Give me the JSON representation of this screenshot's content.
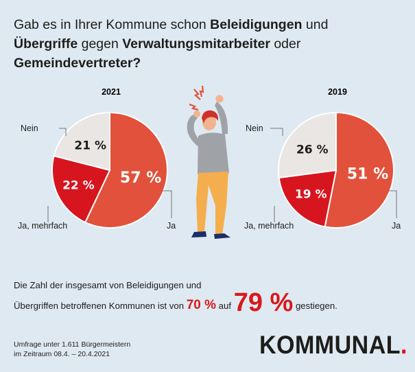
{
  "title": {
    "part1": "Gab es in Ihrer Kommune schon ",
    "bold1": "Beleidigungen",
    "part2": " und ",
    "bold2": "Übergriffe",
    "part3": " gegen ",
    "bold3": "Verwaltungsmitarbeiter",
    "part4": " oder ",
    "bold4": "Gemeindevertreter?"
  },
  "chart_data": [
    {
      "type": "pie",
      "title": "2021",
      "categories": [
        "Ja",
        "Ja, mehrfach",
        "Nein"
      ],
      "values": [
        57,
        22,
        21
      ],
      "labels": [
        "57 %",
        "22 %",
        "21 %"
      ],
      "colors": [
        "#e2513b",
        "#d7151f",
        "#e9e6e3"
      ]
    },
    {
      "type": "pie",
      "title": "2019",
      "categories": [
        "Ja",
        "Ja, mehrfach",
        "Nein"
      ],
      "values": [
        51,
        19,
        26
      ],
      "labels": [
        "51 %",
        "19 %",
        "26 %"
      ],
      "colors": [
        "#e2513b",
        "#d7151f",
        "#e9e6e3"
      ]
    }
  ],
  "summary": {
    "line1": "Die Zahl der insgesamt von Beleidigungen und",
    "line2a": "Übergriffen betroffenen Kommunen ist von ",
    "from": "70 %",
    "mid": " auf ",
    "to": "79 %",
    "end": " gestiegen."
  },
  "source": {
    "line1": "Umfrage unter 1.611 Bürgermeistern",
    "line2": "im Zeitraum 08.4. – 20.4.2021"
  },
  "logo": {
    "text": "KOMMUNAL",
    "dot": "."
  },
  "colors": {
    "background": "#dfe9f1",
    "accent": "#d7191c"
  }
}
